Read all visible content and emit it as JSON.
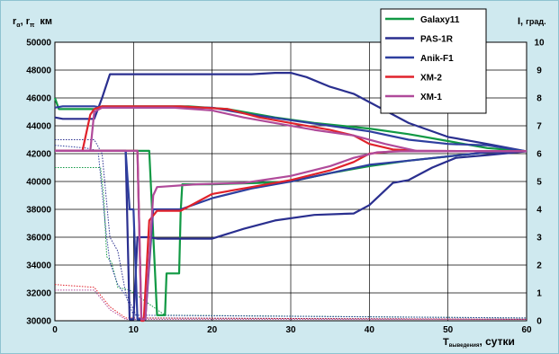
{
  "chart_data": {
    "type": "line",
    "y_left_label": {
      "main": "r",
      "sub1": "α",
      "sep": ", r",
      "sub2": "π",
      "unit": "км"
    },
    "y_right_label": {
      "main": "I,",
      "unit": "град."
    },
    "x_label": {
      "main": "T",
      "sub": "выведения",
      "unit": ", сутки"
    },
    "xlim": [
      0,
      60
    ],
    "ylim_left": [
      30000,
      50000
    ],
    "ylim_right": [
      0,
      10
    ],
    "x_ticks": [
      "0",
      "10",
      "20",
      "30",
      "40",
      "50",
      "60"
    ],
    "y_left_ticks": [
      "30000",
      "32000",
      "34000",
      "36000",
      "38000",
      "40000",
      "42000",
      "44000",
      "46000",
      "48000",
      "50000"
    ],
    "y_right_ticks": [
      "0",
      "1",
      "2",
      "3",
      "4",
      "5",
      "6",
      "7",
      "8",
      "9",
      "10"
    ],
    "grid": true,
    "legend_position": "top-right",
    "series": [
      {
        "name": "Galaxy11",
        "color": "#119944",
        "apogee": [
          [
            0,
            46000
          ],
          [
            0.5,
            45200
          ],
          [
            5,
            45200
          ],
          [
            6,
            45400
          ],
          [
            17,
            45400
          ],
          [
            22,
            45200
          ],
          [
            28,
            44600
          ],
          [
            33,
            44200
          ],
          [
            40,
            43800
          ],
          [
            45,
            43400
          ],
          [
            50,
            42900
          ],
          [
            55,
            42400
          ],
          [
            60,
            42170
          ]
        ],
        "perigee": [
          [
            0,
            42200
          ],
          [
            12,
            42200
          ],
          [
            13,
            30400
          ],
          [
            14,
            30400
          ],
          [
            14.2,
            33400
          ],
          [
            15.8,
            33400
          ],
          [
            16,
            37800
          ],
          [
            16.2,
            39800
          ],
          [
            20,
            39800
          ],
          [
            26,
            39900
          ],
          [
            30,
            40000
          ],
          [
            35,
            40600
          ],
          [
            40,
            41100
          ],
          [
            45,
            41500
          ],
          [
            50,
            41800
          ],
          [
            55,
            42100
          ],
          [
            60,
            42170
          ]
        ],
        "inclination": [
          [
            0,
            5.5
          ],
          [
            5.8,
            5.5
          ],
          [
            6.2,
            4.5
          ],
          [
            6.6,
            2.3
          ],
          [
            7.2,
            2.1
          ],
          [
            8,
            1.2
          ],
          [
            9.5,
            1.1
          ],
          [
            12,
            0.6
          ],
          [
            14,
            0.2
          ],
          [
            60,
            0.1
          ]
        ]
      },
      {
        "name": "PAS-1R",
        "color": "#2a2f8f",
        "apogee": [
          [
            0,
            44600
          ],
          [
            1,
            44500
          ],
          [
            5,
            44500
          ],
          [
            6,
            46000
          ],
          [
            7,
            47700
          ],
          [
            13,
            47700
          ],
          [
            20,
            47700
          ],
          [
            25,
            47700
          ],
          [
            28,
            47800
          ],
          [
            30,
            47800
          ],
          [
            32,
            47500
          ],
          [
            35,
            46800
          ],
          [
            38,
            46300
          ],
          [
            40,
            45700
          ],
          [
            45,
            44200
          ],
          [
            50,
            43200
          ],
          [
            55,
            42700
          ],
          [
            60,
            42170
          ]
        ],
        "perigee": [
          [
            0,
            42200
          ],
          [
            9,
            42200
          ],
          [
            9.5,
            30100
          ],
          [
            10,
            30100
          ],
          [
            10.5,
            36000
          ],
          [
            12,
            36000
          ],
          [
            13,
            35900
          ],
          [
            17,
            35900
          ],
          [
            20,
            35900
          ],
          [
            24,
            36600
          ],
          [
            28,
            37200
          ],
          [
            33,
            37600
          ],
          [
            38,
            37700
          ],
          [
            40,
            38300
          ],
          [
            43,
            39900
          ],
          [
            45,
            40100
          ],
          [
            48,
            41000
          ],
          [
            51,
            41700
          ],
          [
            55,
            41900
          ],
          [
            60,
            42170
          ]
        ],
        "inclination": [
          [
            0,
            6.5
          ],
          [
            5,
            6.5
          ],
          [
            6,
            6.0
          ],
          [
            7,
            3.0
          ],
          [
            8,
            2.5
          ],
          [
            9,
            1.0
          ],
          [
            10.5,
            0.1
          ],
          [
            60,
            0.05
          ]
        ]
      },
      {
        "name": "Anik-F1",
        "color": "#2e3f9f",
        "apogee": [
          [
            0,
            45300
          ],
          [
            1,
            45400
          ],
          [
            5,
            45400
          ],
          [
            6,
            45300
          ],
          [
            16,
            45300
          ],
          [
            20,
            45300
          ],
          [
            25,
            44800
          ],
          [
            30,
            44400
          ],
          [
            35,
            44000
          ],
          [
            40,
            43600
          ],
          [
            45,
            43000
          ],
          [
            50,
            42700
          ],
          [
            55,
            42600
          ],
          [
            60,
            42170
          ]
        ],
        "perigee": [
          [
            0,
            42200
          ],
          [
            9,
            42200
          ],
          [
            9.5,
            38000
          ],
          [
            10,
            38000
          ],
          [
            10.5,
            30100
          ],
          [
            11.5,
            30100
          ],
          [
            12.5,
            38000
          ],
          [
            16,
            38000
          ],
          [
            20,
            38800
          ],
          [
            25,
            39500
          ],
          [
            30,
            40000
          ],
          [
            35,
            40600
          ],
          [
            40,
            41200
          ],
          [
            45,
            41500
          ],
          [
            50,
            41800
          ],
          [
            55,
            42100
          ],
          [
            60,
            42170
          ]
        ],
        "inclination": [
          [
            0,
            6.3
          ],
          [
            4,
            6.2
          ],
          [
            5.5,
            6.1
          ],
          [
            6.5,
            3.2
          ],
          [
            7,
            2.1
          ],
          [
            8,
            1.3
          ],
          [
            9,
            0.9
          ],
          [
            10,
            0.2
          ],
          [
            60,
            0.1
          ]
        ]
      },
      {
        "name": "XM-2",
        "color": "#e0222b",
        "apogee": [
          [
            0,
            42200
          ],
          [
            3.5,
            42200
          ],
          [
            4.5,
            44800
          ],
          [
            5,
            45200
          ],
          [
            6,
            45400
          ],
          [
            16,
            45400
          ],
          [
            22,
            45200
          ],
          [
            26,
            44600
          ],
          [
            30,
            44200
          ],
          [
            35,
            43700
          ],
          [
            38,
            43300
          ],
          [
            40,
            42700
          ],
          [
            43,
            42300
          ],
          [
            46,
            42200
          ],
          [
            60,
            42170
          ]
        ],
        "perigee": [
          [
            0,
            42200
          ],
          [
            10.5,
            42200
          ],
          [
            11,
            30000
          ],
          [
            11.3,
            30000
          ],
          [
            12,
            37200
          ],
          [
            13,
            37900
          ],
          [
            16,
            37900
          ],
          [
            20,
            39100
          ],
          [
            25,
            39600
          ],
          [
            30,
            40100
          ],
          [
            35,
            40800
          ],
          [
            38,
            41400
          ],
          [
            40,
            42000
          ],
          [
            43,
            42170
          ],
          [
            60,
            42170
          ]
        ],
        "inclination": [
          [
            0,
            1.3
          ],
          [
            5,
            1.2
          ],
          [
            7,
            0.5
          ],
          [
            9,
            0.1
          ],
          [
            60,
            0.05
          ]
        ]
      },
      {
        "name": "XM-1",
        "color": "#b04a9a",
        "apogee": [
          [
            0,
            42200
          ],
          [
            4.5,
            42200
          ],
          [
            5,
            45000
          ],
          [
            6,
            45300
          ],
          [
            15,
            45300
          ],
          [
            20,
            45100
          ],
          [
            24,
            44600
          ],
          [
            28,
            44200
          ],
          [
            33,
            43700
          ],
          [
            38,
            43300
          ],
          [
            42,
            42700
          ],
          [
            46,
            42200
          ],
          [
            60,
            42170
          ]
        ],
        "perigee": [
          [
            0,
            42200
          ],
          [
            10.5,
            42200
          ],
          [
            11,
            30100
          ],
          [
            11.5,
            30100
          ],
          [
            12.5,
            39000
          ],
          [
            13,
            39600
          ],
          [
            18,
            39800
          ],
          [
            24,
            39900
          ],
          [
            30,
            40400
          ],
          [
            35,
            41100
          ],
          [
            38,
            41700
          ],
          [
            41,
            42100
          ],
          [
            44,
            42170
          ],
          [
            60,
            42170
          ]
        ],
        "inclination": [
          [
            0,
            1.1
          ],
          [
            5,
            1.1
          ],
          [
            7,
            0.4
          ],
          [
            9,
            0.05
          ],
          [
            60,
            0.05
          ]
        ]
      }
    ]
  }
}
